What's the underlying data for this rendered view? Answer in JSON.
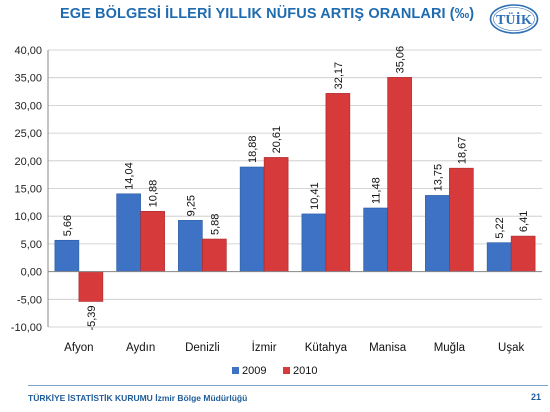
{
  "header": {
    "title": "EGE BÖLGESİ İLLERİ YILLIK NÜFUS ARTIŞ ORANLARI (‰)",
    "logo_text": "TÜİK"
  },
  "footer": {
    "institution": "TÜRKİYE İSTATİSTİK KURUMU",
    "office": "İzmir Bölge Müdürlüğü",
    "page_number": "21"
  },
  "colors": {
    "series_2009": "#3d72c4",
    "series_2010": "#d63a3a",
    "title": "#1f6bb0"
  },
  "chart_data": {
    "type": "bar",
    "title": "EGE BÖLGESİ İLLERİ YILLIK NÜFUS ARTIŞ ORANLARI (‰)",
    "categories": [
      "Afyon",
      "Aydın",
      "Denizli",
      "İzmir",
      "Kütahya",
      "Manisa",
      "Muğla",
      "Uşak"
    ],
    "series": [
      {
        "name": "2009",
        "values": [
          5.66,
          14.04,
          9.25,
          18.88,
          10.41,
          11.48,
          13.75,
          5.22
        ],
        "labels": [
          "5,66",
          "14,04",
          "9,25",
          "18,88",
          "10,41",
          "11,48",
          "13,75",
          "5,22"
        ]
      },
      {
        "name": "2010",
        "values": [
          -5.39,
          10.88,
          5.88,
          20.61,
          32.17,
          35.06,
          18.67,
          6.41
        ],
        "labels": [
          "-5,39",
          "10,88",
          "5,88",
          "20,61",
          "32,17",
          "35,06",
          "18,67",
          "6,41"
        ]
      }
    ],
    "ylim": [
      -10,
      40
    ],
    "yticks": [
      40,
      35,
      30,
      25,
      20,
      15,
      10,
      5,
      0,
      -5,
      -10
    ],
    "ytick_labels": [
      "40,00",
      "35,00",
      "30,00",
      "25,00",
      "20,00",
      "15,00",
      "10,00",
      "5,00",
      "0,00",
      "-5,00",
      "-10,00"
    ],
    "grid": true,
    "legend_position": "bottom"
  }
}
